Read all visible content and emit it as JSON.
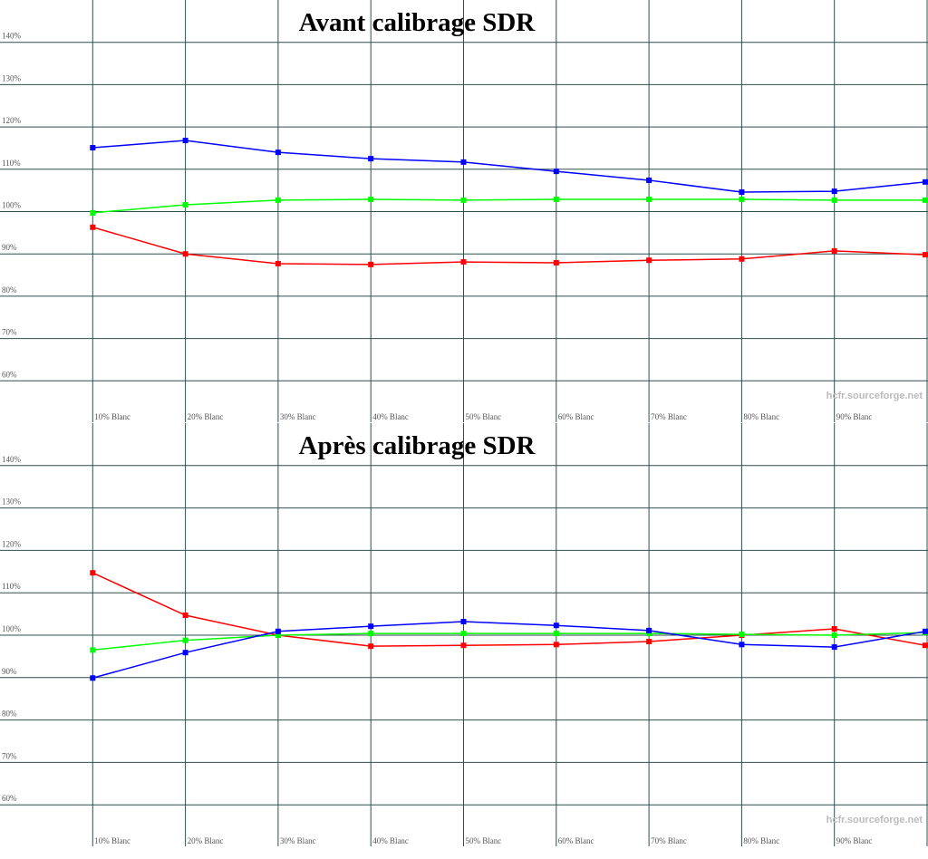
{
  "chart_data": [
    {
      "type": "line",
      "title": "Avant calibrage SDR",
      "watermark": "hcfr.sourceforge.net",
      "categories": [
        "10% Blanc",
        "20% Blanc",
        "30% Blanc",
        "40% Blanc",
        "50% Blanc",
        "60% Blanc",
        "70% Blanc",
        "80% Blanc",
        "90% Blanc",
        null
      ],
      "ylim": [
        50,
        150
      ],
      "yticks": [
        {
          "value": 60,
          "label": "60%"
        },
        {
          "value": 70,
          "label": "70%"
        },
        {
          "value": 80,
          "label": "80%"
        },
        {
          "value": 90,
          "label": "90%"
        },
        {
          "value": 100,
          "label": "100%"
        },
        {
          "value": 110,
          "label": "110%"
        },
        {
          "value": 120,
          "label": "120%"
        },
        {
          "value": 130,
          "label": "130%"
        },
        {
          "value": 140,
          "label": "140%"
        }
      ],
      "reference_line": 100,
      "grid": true,
      "series": [
        {
          "color": "#0000ff",
          "values": [
            115.1,
            116.8,
            114.0,
            112.5,
            111.7,
            109.5,
            107.4,
            104.6,
            104.8,
            107.0
          ]
        },
        {
          "color": "#00ff00",
          "values": [
            99.7,
            101.6,
            102.7,
            102.9,
            102.7,
            102.9,
            102.9,
            102.9,
            102.7,
            102.7
          ]
        },
        {
          "color": "#ff0000",
          "values": [
            96.3,
            90.0,
            87.7,
            87.5,
            88.1,
            87.9,
            88.5,
            88.8,
            90.7,
            89.8
          ]
        }
      ]
    },
    {
      "type": "line",
      "title": "Après calibrage SDR",
      "watermark": "hcfr.sourceforge.net",
      "categories": [
        "10% Blanc",
        "20% Blanc",
        "30% Blanc",
        "40% Blanc",
        "50% Blanc",
        "60% Blanc",
        "70% Blanc",
        "80% Blanc",
        "90% Blanc",
        null
      ],
      "ylim": [
        50,
        150
      ],
      "yticks": [
        {
          "value": 60,
          "label": "60%"
        },
        {
          "value": 70,
          "label": "70%"
        },
        {
          "value": 80,
          "label": "80%"
        },
        {
          "value": 90,
          "label": "90%"
        },
        {
          "value": 100,
          "label": "100%"
        },
        {
          "value": 110,
          "label": "110%"
        },
        {
          "value": 120,
          "label": "120%"
        },
        {
          "value": 130,
          "label": "130%"
        },
        {
          "value": 140,
          "label": "140%"
        }
      ],
      "reference_line": 100,
      "grid": true,
      "series": [
        {
          "color": "#ff0000",
          "values": [
            114.7,
            104.7,
            100.0,
            97.4,
            97.6,
            97.8,
            98.5,
            100.0,
            101.5,
            97.6
          ]
        },
        {
          "color": "#00ff00",
          "values": [
            96.5,
            98.8,
            100.0,
            100.4,
            100.4,
            100.4,
            100.4,
            100.2,
            100.0,
            100.6
          ]
        },
        {
          "color": "#0000ff",
          "values": [
            89.9,
            95.9,
            100.9,
            102.1,
            103.2,
            102.3,
            101.1,
            97.8,
            97.2,
            100.9
          ]
        }
      ]
    }
  ]
}
